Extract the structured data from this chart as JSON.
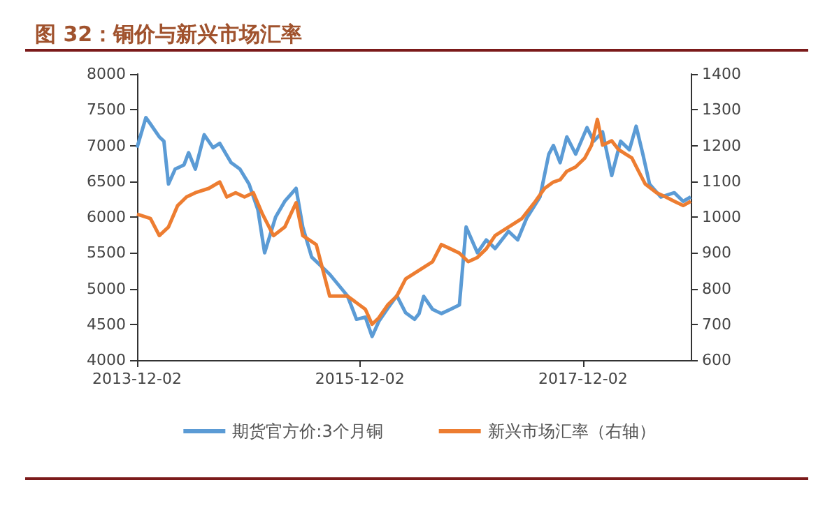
{
  "chart_data": {
    "type": "line",
    "title": "图 32：铜价与新兴市场汇率",
    "legend": "bottom",
    "marker": "none",
    "line_style": "solid",
    "xlim": [
      "2013-12-02",
      "2018-11-20"
    ],
    "xticks": [
      "2013-12-02",
      "2015-12-02",
      "2017-12-02"
    ],
    "ylim": [
      4000,
      8000
    ],
    "yticks": [
      4000,
      4500,
      5000,
      5500,
      6000,
      6500,
      7000,
      7500,
      8000
    ],
    "y2lim": [
      600,
      1400
    ],
    "y2ticks": [
      600,
      700,
      800,
      900,
      1000,
      1100,
      1200,
      1300,
      1400
    ],
    "series": [
      {
        "name": "期货官方价:3个月铜",
        "color": "#5b9bd5",
        "x": [
          "2013-12-02",
          "2013-12-31",
          "2014-01-15",
          "2014-02-13",
          "2014-02-28",
          "2014-03-15",
          "2014-04-06",
          "2014-05-05",
          "2014-05-20",
          "2014-06-11",
          "2014-07-10",
          "2014-08-08",
          "2014-08-30",
          "2014-10-06",
          "2014-11-04",
          "2014-12-04",
          "2015-01-02",
          "2015-01-24",
          "2015-03-01",
          "2015-03-31",
          "2015-05-07",
          "2015-05-29",
          "2015-06-27",
          "2015-08-25",
          "2015-10-22",
          "2015-11-21",
          "2015-12-20",
          "2016-01-11",
          "2016-02-02",
          "2016-03-02",
          "2016-04-01",
          "2016-04-30",
          "2016-05-29",
          "2016-06-13",
          "2016-06-28",
          "2016-07-27",
          "2016-08-25",
          "2016-09-24",
          "2016-10-23",
          "2016-11-14",
          "2016-12-21",
          "2017-01-19",
          "2017-02-17",
          "2017-04-02",
          "2017-05-02",
          "2017-05-31",
          "2017-07-14",
          "2017-08-12",
          "2017-08-27",
          "2017-09-18",
          "2017-10-10",
          "2017-11-08",
          "2017-12-15",
          "2018-01-06",
          "2018-02-04",
          "2018-03-06",
          "2018-04-04",
          "2018-05-03",
          "2018-05-25",
          "2018-06-16",
          "2018-07-08",
          "2018-08-14",
          "2018-09-27",
          "2018-10-26",
          "2018-11-20"
        ],
        "values": [
          6970,
          7390,
          7300,
          7120,
          7060,
          6460,
          6670,
          6730,
          6900,
          6670,
          7150,
          6970,
          7030,
          6760,
          6670,
          6460,
          6100,
          5500,
          6000,
          6220,
          6400,
          5860,
          5440,
          5200,
          4900,
          4570,
          4600,
          4330,
          4540,
          4720,
          4900,
          4660,
          4570,
          4650,
          4890,
          4710,
          4650,
          4710,
          4770,
          5860,
          5500,
          5680,
          5560,
          5800,
          5680,
          5980,
          6280,
          6880,
          7000,
          6760,
          7120,
          6880,
          7250,
          7060,
          7190,
          6580,
          7060,
          6940,
          7270,
          6880,
          6460,
          6280,
          6340,
          6220,
          6280
        ]
      },
      {
        "name": "新兴市场汇率（右轴）",
        "color": "#ed7d31",
        "axis": "y2",
        "x": [
          "2013-12-02",
          "2014-01-15",
          "2014-02-13",
          "2014-03-15",
          "2014-04-14",
          "2014-05-13",
          "2014-06-11",
          "2014-07-25",
          "2014-08-30",
          "2014-09-22",
          "2014-10-21",
          "2014-11-19",
          "2014-12-18",
          "2015-01-17",
          "2015-02-22",
          "2015-03-31",
          "2015-05-07",
          "2015-05-29",
          "2015-07-12",
          "2015-08-25",
          "2015-10-22",
          "2015-12-20",
          "2016-01-11",
          "2016-02-02",
          "2016-03-02",
          "2016-04-01",
          "2016-04-30",
          "2016-06-13",
          "2016-07-27",
          "2016-08-25",
          "2016-09-24",
          "2016-10-23",
          "2016-11-21",
          "2016-12-21",
          "2017-01-19",
          "2017-02-17",
          "2017-04-02",
          "2017-05-16",
          "2017-06-29",
          "2017-07-29",
          "2017-08-27",
          "2017-09-18",
          "2017-10-10",
          "2017-11-08",
          "2017-12-08",
          "2017-12-30",
          "2018-01-18",
          "2018-02-04",
          "2018-03-06",
          "2018-03-28",
          "2018-04-19",
          "2018-05-11",
          "2018-06-02",
          "2018-06-24",
          "2018-07-31",
          "2018-08-30",
          "2018-09-27",
          "2018-10-26",
          "2018-11-20"
        ],
        "values": [
          1008,
          996,
          948,
          972,
          1032,
          1056,
          1068,
          1080,
          1098,
          1056,
          1068,
          1056,
          1068,
          1008,
          948,
          972,
          1040,
          948,
          923,
          779,
          779,
          742,
          700,
          718,
          754,
          779,
          827,
          851,
          875,
          923,
          911,
          899,
          875,
          887,
          911,
          948,
          972,
          996,
          1044,
          1080,
          1098,
          1104,
          1128,
          1140,
          1165,
          1201,
          1273,
          1201,
          1213,
          1189,
          1177,
          1165,
          1128,
          1092,
          1068,
          1056,
          1044,
          1032,
          1044
        ]
      }
    ]
  }
}
